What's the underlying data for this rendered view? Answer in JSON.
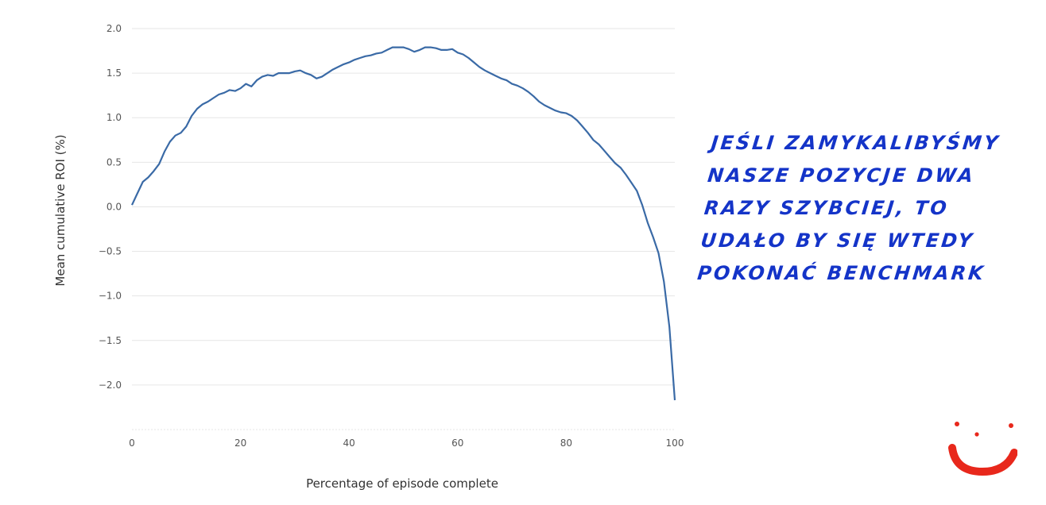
{
  "chart_data": {
    "type": "line",
    "xlabel": "Percentage of episode complete",
    "ylabel": "Mean cumulative ROI (%)",
    "xlim": [
      0,
      100
    ],
    "ylim": [
      -2.5,
      2.0
    ],
    "x_ticks": [
      "0",
      "20",
      "40",
      "60",
      "80",
      "100"
    ],
    "y_ticks": [
      "2.0",
      "1.5",
      "1.0",
      "0.5",
      "0.0",
      "−0.5",
      "−1.0",
      "−1.5",
      "−2.0"
    ],
    "grid": "horizontal",
    "series": [
      {
        "color": "#3a6aa6",
        "x": [
          0,
          1,
          2,
          3,
          4,
          5,
          6,
          7,
          8,
          9,
          10,
          11,
          12,
          13,
          14,
          15,
          16,
          17,
          18,
          19,
          20,
          21,
          22,
          23,
          24,
          25,
          26,
          27,
          28,
          29,
          30,
          31,
          32,
          33,
          34,
          35,
          36,
          37,
          38,
          39,
          40,
          41,
          42,
          43,
          44,
          45,
          46,
          47,
          48,
          49,
          50,
          51,
          52,
          53,
          54,
          55,
          56,
          57,
          58,
          59,
          60,
          61,
          62,
          63,
          64,
          65,
          66,
          67,
          68,
          69,
          70,
          71,
          72,
          73,
          74,
          75,
          76,
          77,
          78,
          79,
          80,
          81,
          82,
          83,
          84,
          85,
          86,
          87,
          88,
          89,
          90,
          91,
          92,
          93,
          94,
          95,
          96,
          97,
          98,
          99,
          100
        ],
        "y": [
          0.02,
          0.15,
          0.28,
          0.33,
          0.4,
          0.48,
          0.62,
          0.73,
          0.8,
          0.83,
          0.9,
          1.02,
          1.1,
          1.15,
          1.18,
          1.22,
          1.26,
          1.28,
          1.31,
          1.3,
          1.33,
          1.38,
          1.35,
          1.42,
          1.46,
          1.48,
          1.47,
          1.5,
          1.5,
          1.5,
          1.52,
          1.53,
          1.5,
          1.48,
          1.44,
          1.46,
          1.5,
          1.54,
          1.57,
          1.6,
          1.62,
          1.65,
          1.67,
          1.69,
          1.7,
          1.72,
          1.73,
          1.76,
          1.79,
          1.79,
          1.79,
          1.77,
          1.74,
          1.76,
          1.79,
          1.79,
          1.78,
          1.76,
          1.76,
          1.77,
          1.73,
          1.71,
          1.67,
          1.62,
          1.57,
          1.53,
          1.5,
          1.47,
          1.44,
          1.42,
          1.38,
          1.36,
          1.33,
          1.29,
          1.24,
          1.18,
          1.14,
          1.11,
          1.08,
          1.06,
          1.05,
          1.02,
          0.97,
          0.9,
          0.83,
          0.75,
          0.7,
          0.63,
          0.56,
          0.49,
          0.44,
          0.36,
          0.27,
          0.18,
          0.02,
          -0.18,
          -0.34,
          -0.52,
          -0.84,
          -1.35,
          -2.17
        ]
      }
    ]
  },
  "annotation": {
    "lines": [
      "JEŚLI ZAMYKALIBYŚMY",
      "NASZE POZYCJE DWA",
      "RAZY SZYBCIEJ, TO",
      "UDAŁO BY SIĘ WTEDY",
      "POKONAĆ BENCHMARK"
    ],
    "color": "#1434c8"
  },
  "smiley": {
    "color": "#e8281c"
  }
}
